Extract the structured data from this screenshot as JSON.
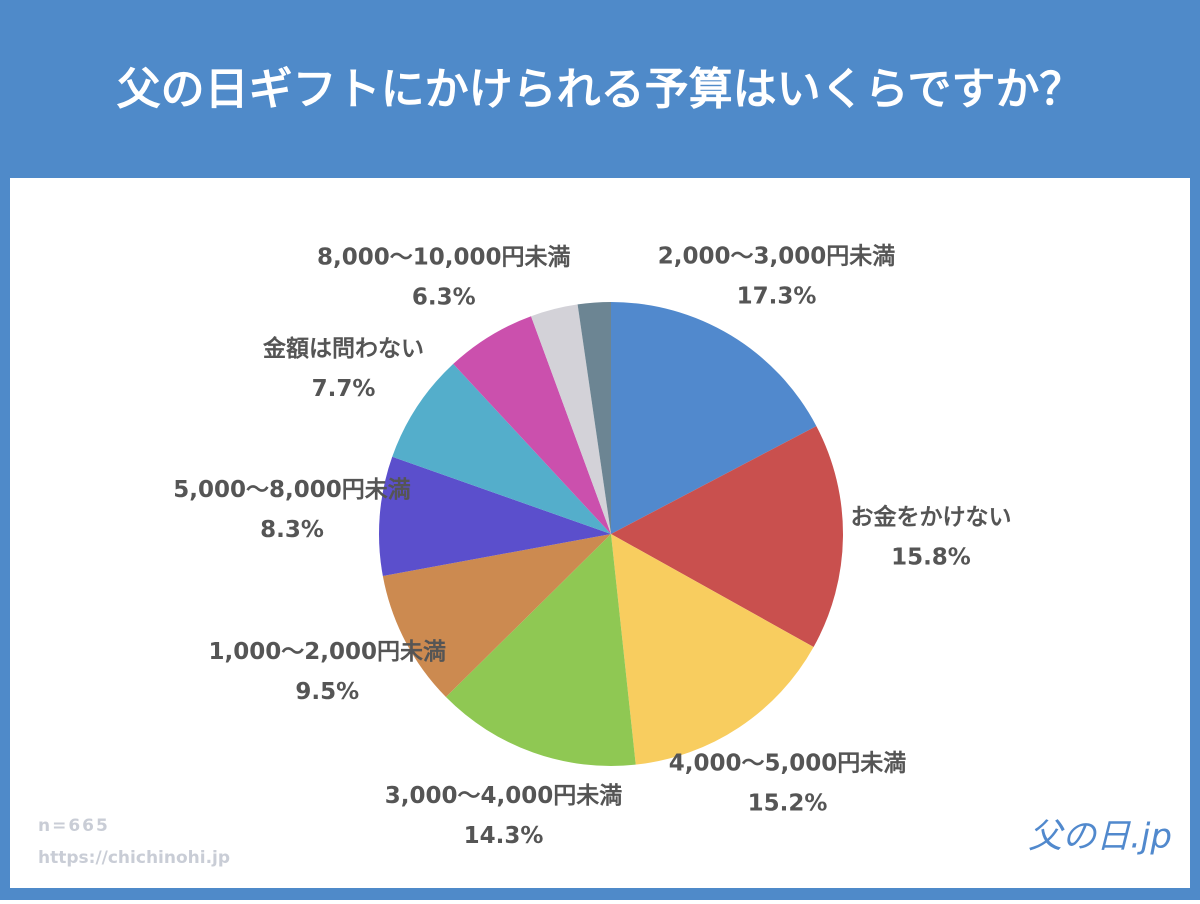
{
  "chart_data": {
    "type": "pie",
    "title": "父の日ギフトにかけられる予算はいくらですか？",
    "categories": [
      "2,000〜3,000円未満",
      "お金をかけない",
      "4,000〜5,000円未満",
      "3,000〜4,000円未満",
      "1,000〜2,000円未満",
      "5,000〜8,000円未満",
      "金額は問わない",
      "8,000〜10,000円未満",
      null,
      null
    ],
    "values": [
      17.3,
      15.8,
      15.2,
      14.3,
      9.5,
      8.3,
      7.7,
      6.3,
      3.3,
      2.3
    ],
    "value_labels": [
      "17.3%",
      "15.8%",
      "15.2%",
      "14.3%",
      "9.5%",
      "8.3%",
      "7.7%",
      "6.3%",
      null,
      null
    ],
    "colors": [
      "#5189cd",
      "#c9504e",
      "#f8cd5f",
      "#8fc853",
      "#cc8a50",
      "#5b4fcc",
      "#54aecb",
      "#cb50ad",
      "#d3d2d8",
      "#6c8593"
    ],
    "sample_note": "n=665",
    "source": "https://chichinohi.jp",
    "logo": "父の日.jp"
  }
}
